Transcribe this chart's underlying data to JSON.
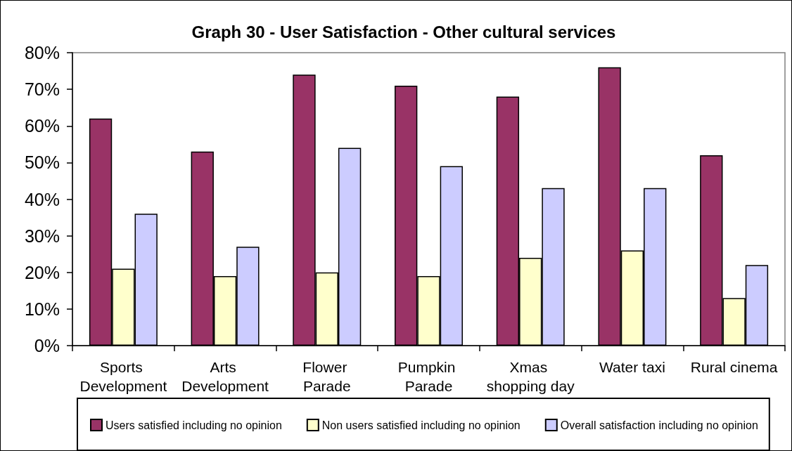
{
  "chart_data": {
    "type": "bar",
    "title": "Graph 30 - User Satisfaction - Other cultural services",
    "categories": [
      "Sports Development",
      "Arts Development",
      "Flower Parade",
      "Pumpkin Parade",
      "Xmas shopping day",
      "Water taxi",
      "Rural cinema"
    ],
    "series": [
      {
        "name": "Users satisfied including no opinion",
        "color": "#993366",
        "values": [
          62,
          53,
          74,
          71,
          68,
          76,
          52
        ]
      },
      {
        "name": "Non users satisfied including no opinion",
        "color": "#ffffcc",
        "values": [
          21,
          19,
          20,
          19,
          24,
          26,
          13
        ]
      },
      {
        "name": "Overall satisfaction including no opinion",
        "color": "#ccccff",
        "values": [
          36,
          27,
          54,
          49,
          43,
          43,
          22
        ]
      }
    ],
    "ylim": [
      0,
      80
    ],
    "yticks": [
      {
        "value": 0,
        "label": "0%"
      },
      {
        "value": 10,
        "label": "10%"
      },
      {
        "value": 20,
        "label": "20%"
      },
      {
        "value": 30,
        "label": "30%"
      },
      {
        "value": 40,
        "label": "40%"
      },
      {
        "value": 50,
        "label": "50%"
      },
      {
        "value": 60,
        "label": "60%"
      },
      {
        "value": 70,
        "label": "70%"
      },
      {
        "value": 80,
        "label": "80%"
      }
    ],
    "legend": "bottom"
  }
}
